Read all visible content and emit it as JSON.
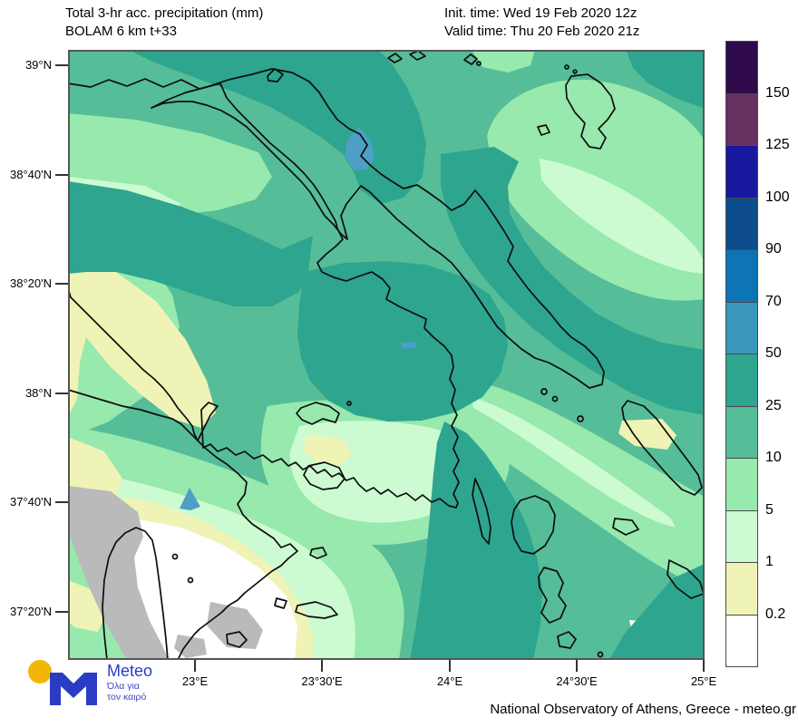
{
  "header": {
    "title_line1": "Total 3-hr acc. precipitation (mm)",
    "title_line2": "BOLAM 6 km t+33",
    "init_time": "Init. time: Wed 19 Feb 2020 12z",
    "valid_time": "Valid time: Thu 20 Feb 2020 21z"
  },
  "axes": {
    "lat_ticks": [
      "39°N",
      "38°40'N",
      "38°20'N",
      "38°N",
      "37°40'N",
      "37°20'N"
    ],
    "lon_ticks": [
      "23°E",
      "23°30'E",
      "24°E",
      "24°30'E",
      "25°E"
    ]
  },
  "legend": {
    "values": [
      "150",
      "125",
      "100",
      "90",
      "70",
      "50",
      "25",
      "10",
      "5",
      "1",
      "0.2"
    ],
    "colors": [
      "#2e0a4a",
      "#66305f",
      "#16199d",
      "#0d4d8b",
      "#0d74b5",
      "#3a97bb",
      "#2ea58e",
      "#55bd98",
      "#97e9ae",
      "#cdfbd1",
      "#eff3b6",
      "#ffffff"
    ]
  },
  "map_region_colors": {
    "bg": "#55bd98",
    "teal": "#2ea58e",
    "light": "#97e9ae",
    "vlight": "#cdfbd1",
    "yellow": "#eff3b6",
    "white": "#ffffff",
    "gray": "#bababa",
    "blue": "#4d9fc6",
    "coast": "#0d0d0d",
    "frame": "#555555"
  },
  "footer": {
    "brand": "Meteo",
    "tagline_line1": "Όλα για",
    "tagline_line2": "τον καιρό",
    "attribution": "National Observatory of Athens, Greece - meteo.gr"
  }
}
